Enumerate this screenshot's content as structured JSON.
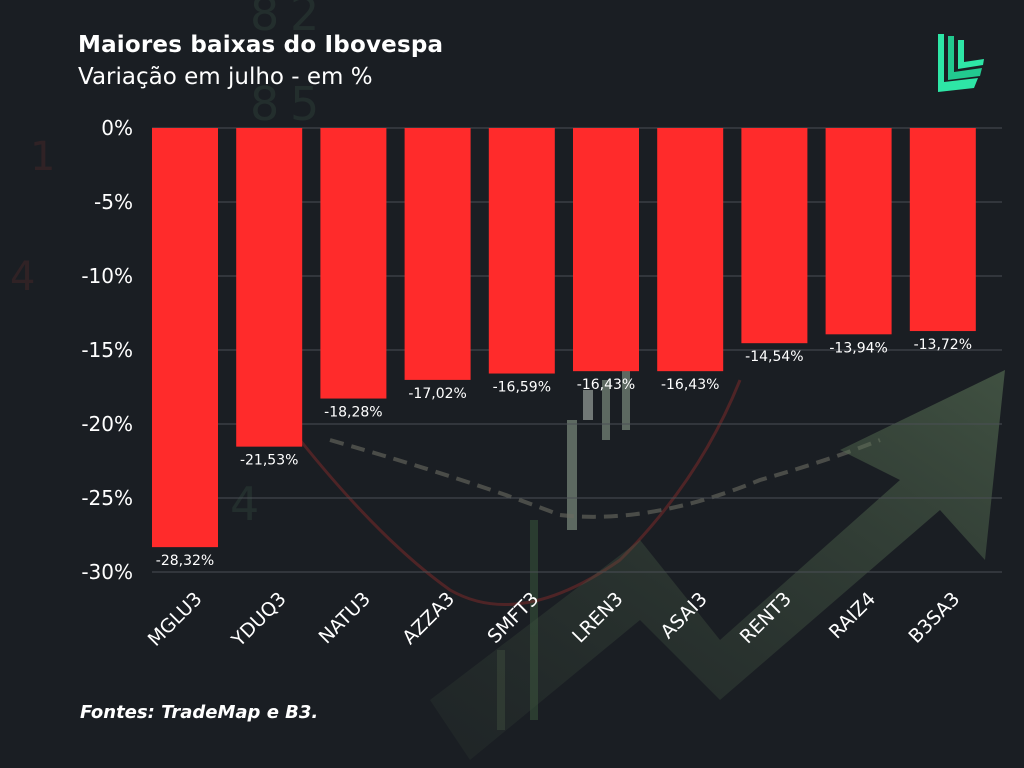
{
  "header": {
    "title": "Maiores baixas do Ibovespa",
    "subtitle": "Variação em julho - em %"
  },
  "footer": {
    "source": "Fontes: TradeMap e B3."
  },
  "colors": {
    "bar": "#ff2b2b",
    "background": "#1b1f24",
    "logo": "#2ee6a6"
  },
  "logo": {
    "icon": "brand-logo-icon"
  },
  "chart_data": {
    "type": "bar",
    "title": "Maiores baixas do Ibovespa",
    "subtitle": "Variação em julho - em %",
    "xlabel": "",
    "ylabel": "",
    "categories": [
      "MGLU3",
      "YDUQ3",
      "NATU3",
      "AZZA3",
      "SMFT3",
      "LREN3",
      "ASAI3",
      "RENT3",
      "RAIZ4",
      "B3SA3"
    ],
    "values": [
      -28.32,
      -21.53,
      -18.28,
      -17.02,
      -16.59,
      -16.43,
      -16.43,
      -14.54,
      -13.94,
      -13.72
    ],
    "data_labels": [
      "-28,32%",
      "-21,53%",
      "-18,28%",
      "-17,02%",
      "-16,59%",
      "-16,43%",
      "-16,43%",
      "-14,54%",
      "-13,94%",
      "-13,72%"
    ],
    "ylim": [
      -30,
      0
    ],
    "yticks": [
      0,
      -5,
      -10,
      -15,
      -20,
      -25,
      -30
    ],
    "ytick_labels": [
      "0%",
      "-5%",
      "-10%",
      "-15%",
      "-20%",
      "-25%",
      "-30%"
    ],
    "grid": true,
    "legend": "none"
  }
}
